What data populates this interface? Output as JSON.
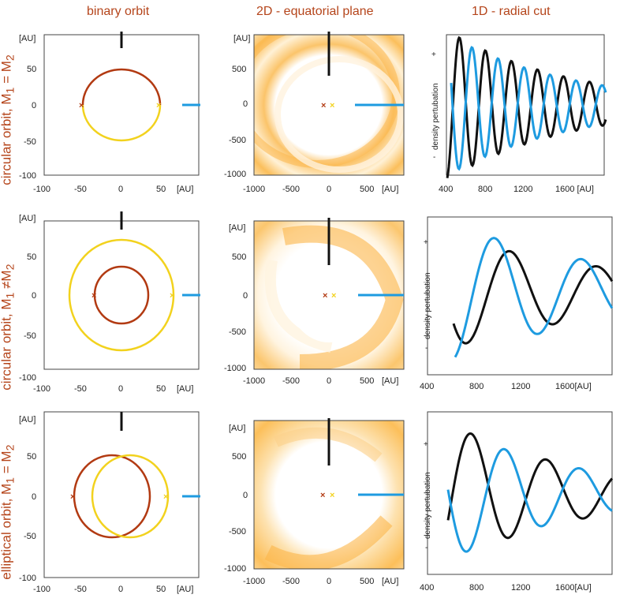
{
  "column_titles": [
    "binary orbit",
    "2D - equatorial plane",
    "1D - radial cut"
  ],
  "row_labels": [
    {
      "main": "circular orbit,  M",
      "s1": "1",
      "mid": " = M",
      "s2": "2"
    },
    {
      "main": "circular orbit,  M",
      "s1": "1",
      "mid": " ≠M",
      "s2": "2"
    },
    {
      "main": "elliptical orbit,  M",
      "s1": "1",
      "mid": " = M",
      "s2": "2"
    }
  ],
  "colors": {
    "accent_red": "#b5451b",
    "dark_red": "#b23a12",
    "yellow": "#f2d21e",
    "blue": "#1e9be0",
    "black": "#111111",
    "orange": "#f5a623"
  },
  "chart_data": [
    {
      "type": "line",
      "panel": "binary orbit",
      "row": 1,
      "xlabel": "[AU]",
      "ylabel": "[AU]",
      "xlim": [
        -100,
        100
      ],
      "ylim": [
        -100,
        100
      ],
      "xticks": [
        "-100",
        "-50",
        "0",
        "50",
        "[AU]"
      ],
      "yticks": [
        "-100",
        "-50",
        "0",
        "50",
        "[AU]"
      ],
      "series": [
        {
          "color": "dark_red",
          "shape": "upper half circle",
          "radius": 50
        },
        {
          "color": "yellow",
          "shape": "lower half circle",
          "radius": 50
        }
      ],
      "markers": [
        {
          "x": -50,
          "y": 0,
          "color": "dark_red"
        },
        {
          "x": 50,
          "y": 0,
          "color": "yellow"
        }
      ]
    },
    {
      "type": "heatmap",
      "panel": "2D - equatorial plane",
      "row": 1,
      "xlabel": "[AU]",
      "ylabel": "[AU]",
      "xlim": [
        -1000,
        1000
      ],
      "ylim": [
        -1000,
        1000
      ],
      "xticks": [
        "-1000",
        "-500",
        "0",
        "500",
        "[AU]"
      ],
      "yticks": [
        "-1000",
        "-500",
        "0",
        "500",
        "[AU]"
      ],
      "inner_hole_radius": 400,
      "pattern": "spiral arms"
    },
    {
      "type": "line",
      "panel": "1D - radial cut",
      "row": 1,
      "xlabel": "[AU]",
      "ylabel": "density pertubation",
      "xlim": [
        400,
        1900
      ],
      "xticks": [
        "400",
        "800",
        "1200",
        "1600 [AU]"
      ],
      "ysigns": [
        "+",
        "-"
      ],
      "series": [
        "black",
        "blue"
      ]
    },
    {
      "type": "line",
      "panel": "binary orbit",
      "row": 2,
      "xlabel": "[AU]",
      "ylabel": "[AU]",
      "xlim": [
        -100,
        100
      ],
      "ylim": [
        -100,
        100
      ],
      "xticks": [
        "-100",
        "-50",
        "0",
        "50",
        "[AU]"
      ],
      "yticks": [
        "-100",
        "-50",
        "0",
        "50",
        "[AU]"
      ],
      "series": [
        {
          "color": "dark_red",
          "shape": "circle",
          "radius": 33
        },
        {
          "color": "yellow",
          "shape": "circle",
          "radius": 67
        }
      ],
      "markers": [
        {
          "x": -33,
          "y": 0,
          "color": "dark_red"
        },
        {
          "x": 67,
          "y": 0,
          "color": "yellow"
        }
      ]
    },
    {
      "type": "heatmap",
      "panel": "2D - equatorial plane",
      "row": 2,
      "xlabel": "[AU]",
      "ylabel": "[AU]",
      "xlim": [
        -1000,
        1000
      ],
      "ylim": [
        -1000,
        1000
      ],
      "xticks": [
        "-1000",
        "-500",
        "0",
        "500",
        "[AU]"
      ],
      "yticks": [
        "-1000",
        "-500",
        "0",
        "500",
        "[AU]"
      ],
      "inner_hole_radius": 400,
      "pattern": "single spiral arm"
    },
    {
      "type": "line",
      "panel": "1D - radial cut",
      "row": 2,
      "xlabel": "[AU]",
      "ylabel": "density pertubation",
      "xlim": [
        400,
        1900
      ],
      "xticks": [
        "400",
        "800",
        "1200",
        "1600[AU]"
      ],
      "ysigns": [
        "+",
        "-"
      ],
      "series": [
        "black",
        "blue"
      ]
    },
    {
      "type": "line",
      "panel": "binary orbit",
      "row": 3,
      "xlabel": "[AU]",
      "ylabel": "[AU]",
      "xlim": [
        -100,
        100
      ],
      "ylim": [
        -100,
        100
      ],
      "xticks": [
        "-100",
        "-50",
        "0",
        "50",
        "[AU]"
      ],
      "yticks": [
        "-100",
        "-50",
        "0",
        "50",
        "[AU]"
      ],
      "series": [
        {
          "color": "dark_red",
          "shape": "ellipse",
          "cx": -12
        },
        {
          "color": "yellow",
          "shape": "ellipse",
          "cx": 12
        }
      ],
      "markers": [
        {
          "x": -60,
          "y": 0,
          "color": "dark_red"
        },
        {
          "x": 60,
          "y": 0,
          "color": "yellow"
        }
      ]
    },
    {
      "type": "heatmap",
      "panel": "2D - equatorial plane",
      "row": 3,
      "xlabel": "[AU]",
      "ylabel": "[AU]",
      "xlim": [
        -1000,
        1000
      ],
      "ylim": [
        -1000,
        1000
      ],
      "xticks": [
        "-1000",
        "-500",
        "0",
        "500",
        "[AU]"
      ],
      "yticks": [
        "-1000",
        "-500",
        "0",
        "500",
        "[AU]"
      ],
      "inner_hole_radius": 400,
      "pattern": "ring with spiral"
    },
    {
      "type": "line",
      "panel": "1D - radial cut",
      "row": 3,
      "xlabel": "[AU]",
      "ylabel": "density pertubation",
      "xlim": [
        400,
        1900
      ],
      "xticks": [
        "400",
        "800",
        "1200",
        "1600[AU]"
      ],
      "ysigns": [
        "+",
        "-"
      ],
      "series": [
        "black",
        "blue"
      ]
    }
  ]
}
